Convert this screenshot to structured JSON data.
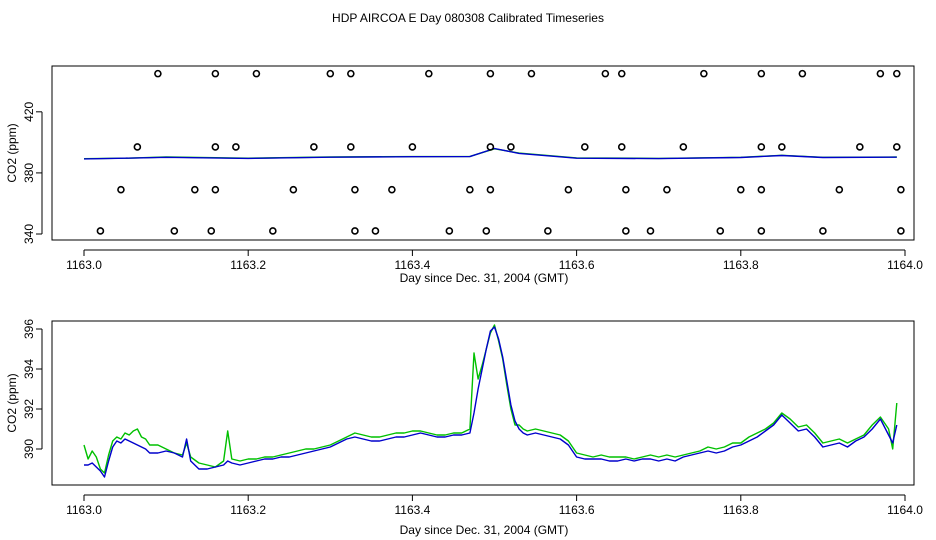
{
  "title": "HDP AIRCOA E  Day 080308  Calibrated Timeseries",
  "colors": {
    "green": "#00c000",
    "blue": "#0000cc",
    "axis": "#000000"
  },
  "chart_data": [
    {
      "type": "line",
      "xlabel": "Day since Dec. 31, 2004 (GMT)",
      "ylabel": "CO2 (ppm)",
      "xlim": [
        1163.0,
        1164.0
      ],
      "ylim": [
        340,
        450
      ],
      "x_ticks": [
        "1163.0",
        "1163.2",
        "1163.4",
        "1163.6",
        "1163.8",
        "1164.0"
      ],
      "y_ticks": [
        "340",
        "380",
        "420"
      ],
      "grid": false,
      "series": [
        {
          "color": "#00c000",
          "x": [
            1163.0,
            1163.05,
            1163.1,
            1163.2,
            1163.3,
            1163.4,
            1163.47,
            1163.5,
            1163.53,
            1163.6,
            1163.7,
            1163.8,
            1163.85,
            1163.9,
            1163.99
          ],
          "y": [
            389.3,
            389.6,
            390.4,
            389.6,
            390.4,
            390.7,
            390.8,
            395.8,
            393.0,
            389.8,
            389.5,
            390.2,
            391.5,
            390.2,
            390.4
          ]
        },
        {
          "color": "#0000cc",
          "x": [
            1163.0,
            1163.05,
            1163.1,
            1163.2,
            1163.3,
            1163.4,
            1163.47,
            1163.5,
            1163.53,
            1163.6,
            1163.7,
            1163.8,
            1163.85,
            1163.9,
            1163.99
          ],
          "y": [
            389.2,
            389.6,
            390.2,
            389.5,
            390.3,
            390.6,
            390.7,
            396.0,
            392.8,
            389.6,
            389.4,
            390.1,
            391.4,
            390.1,
            390.3
          ]
        },
        {
          "type": "scatter",
          "marker": "open-circle",
          "x": [
            1163.02,
            1163.11,
            1163.155,
            1163.23,
            1163.33,
            1163.355,
            1163.445,
            1163.49,
            1163.565,
            1163.66,
            1163.69,
            1163.775,
            1163.825,
            1163.9,
            1163.995
          ],
          "y": [
            342,
            342,
            342,
            342,
            342,
            342,
            342,
            342,
            342,
            342,
            342,
            342,
            342,
            342,
            342
          ]
        },
        {
          "type": "scatter",
          "marker": "open-circle",
          "x": [
            1163.045,
            1163.135,
            1163.16,
            1163.255,
            1163.33,
            1163.375,
            1163.47,
            1163.495,
            1163.59,
            1163.66,
            1163.71,
            1163.8,
            1163.825,
            1163.92,
            1163.995
          ],
          "y": [
            369,
            369,
            369,
            369,
            369,
            369,
            369,
            369,
            369,
            369,
            369,
            369,
            369,
            369,
            369
          ]
        },
        {
          "type": "scatter",
          "marker": "open-circle",
          "x": [
            1163.065,
            1163.16,
            1163.185,
            1163.28,
            1163.325,
            1163.4,
            1163.495,
            1163.52,
            1163.61,
            1163.655,
            1163.73,
            1163.825,
            1163.85,
            1163.945,
            1163.99
          ],
          "y": [
            397,
            397,
            397,
            397,
            397,
            397,
            397,
            397,
            397,
            397,
            397,
            397,
            397,
            397,
            397
          ]
        },
        {
          "type": "scatter",
          "marker": "open-circle",
          "x": [
            1163.09,
            1163.16,
            1163.21,
            1163.3,
            1163.325,
            1163.42,
            1163.495,
            1163.545,
            1163.635,
            1163.655,
            1163.755,
            1163.825,
            1163.875,
            1163.97,
            1163.99
          ],
          "y": [
            445,
            445,
            445,
            445,
            445,
            445,
            445,
            445,
            445,
            445,
            445,
            445,
            445,
            445,
            445
          ]
        }
      ]
    },
    {
      "type": "line",
      "xlabel": "Day since Dec. 31, 2004 (GMT)",
      "ylabel": "CO2 (ppm)",
      "xlim": [
        1163.0,
        1164.0
      ],
      "ylim": [
        388.2,
        396.4
      ],
      "x_ticks": [
        "1163.0",
        "1163.2",
        "1163.4",
        "1163.6",
        "1163.8",
        "1164.0"
      ],
      "y_ticks": [
        "390",
        "392",
        "394",
        "396"
      ],
      "grid": false,
      "series": [
        {
          "color": "#00c000",
          "x": [
            1163.0,
            1163.005,
            1163.01,
            1163.015,
            1163.02,
            1163.025,
            1163.03,
            1163.035,
            1163.04,
            1163.045,
            1163.05,
            1163.055,
            1163.06,
            1163.065,
            1163.07,
            1163.075,
            1163.08,
            1163.09,
            1163.1,
            1163.11,
            1163.12,
            1163.125,
            1163.13,
            1163.14,
            1163.15,
            1163.16,
            1163.17,
            1163.175,
            1163.18,
            1163.19,
            1163.2,
            1163.21,
            1163.22,
            1163.23,
            1163.24,
            1163.25,
            1163.26,
            1163.27,
            1163.28,
            1163.29,
            1163.3,
            1163.31,
            1163.32,
            1163.33,
            1163.34,
            1163.35,
            1163.36,
            1163.37,
            1163.38,
            1163.39,
            1163.4,
            1163.41,
            1163.42,
            1163.43,
            1163.44,
            1163.45,
            1163.46,
            1163.47,
            1163.475,
            1163.48,
            1163.485,
            1163.49,
            1163.495,
            1163.5,
            1163.505,
            1163.51,
            1163.515,
            1163.52,
            1163.525,
            1163.53,
            1163.535,
            1163.54,
            1163.55,
            1163.56,
            1163.57,
            1163.58,
            1163.59,
            1163.6,
            1163.61,
            1163.62,
            1163.63,
            1163.64,
            1163.65,
            1163.66,
            1163.67,
            1163.68,
            1163.69,
            1163.7,
            1163.71,
            1163.72,
            1163.73,
            1163.74,
            1163.75,
            1163.76,
            1163.77,
            1163.78,
            1163.79,
            1163.8,
            1163.81,
            1163.82,
            1163.83,
            1163.84,
            1163.85,
            1163.86,
            1163.87,
            1163.88,
            1163.89,
            1163.9,
            1163.91,
            1163.92,
            1163.93,
            1163.94,
            1163.95,
            1163.96,
            1163.97,
            1163.975,
            1163.98,
            1163.985,
            1163.99
          ],
          "y": [
            390.2,
            389.5,
            389.9,
            389.6,
            389.0,
            388.8,
            389.7,
            390.4,
            390.6,
            390.5,
            390.8,
            390.7,
            390.9,
            391.0,
            390.6,
            390.5,
            390.2,
            390.2,
            390.0,
            389.8,
            389.7,
            390.3,
            389.6,
            389.3,
            389.2,
            389.1,
            389.4,
            390.9,
            389.5,
            389.4,
            389.5,
            389.5,
            389.6,
            389.6,
            389.7,
            389.8,
            389.9,
            390.0,
            390.0,
            390.1,
            390.2,
            390.4,
            390.6,
            390.8,
            390.7,
            390.6,
            390.6,
            390.7,
            390.8,
            390.8,
            390.9,
            390.9,
            390.8,
            390.7,
            390.7,
            390.8,
            390.8,
            391.0,
            394.8,
            393.5,
            394.2,
            395.0,
            395.8,
            396.2,
            395.4,
            394.5,
            393.2,
            392.0,
            391.2,
            391.2,
            391.0,
            390.9,
            391.0,
            390.9,
            390.8,
            390.7,
            390.4,
            389.8,
            389.7,
            389.6,
            389.7,
            389.6,
            389.6,
            389.6,
            389.5,
            389.6,
            389.7,
            389.6,
            389.7,
            389.6,
            389.7,
            389.8,
            389.9,
            390.1,
            390.0,
            390.1,
            390.3,
            390.3,
            390.6,
            390.8,
            391.0,
            391.3,
            391.8,
            391.5,
            391.1,
            391.2,
            390.8,
            390.3,
            390.4,
            390.5,
            390.3,
            390.5,
            390.7,
            391.2,
            391.6,
            391.3,
            391.0,
            390.0,
            392.3
          ]
        },
        {
          "color": "#0000cc",
          "x": [
            1163.0,
            1163.005,
            1163.01,
            1163.015,
            1163.02,
            1163.025,
            1163.03,
            1163.035,
            1163.04,
            1163.045,
            1163.05,
            1163.055,
            1163.06,
            1163.065,
            1163.07,
            1163.075,
            1163.08,
            1163.09,
            1163.1,
            1163.11,
            1163.12,
            1163.125,
            1163.13,
            1163.14,
            1163.15,
            1163.16,
            1163.17,
            1163.175,
            1163.18,
            1163.19,
            1163.2,
            1163.21,
            1163.22,
            1163.23,
            1163.24,
            1163.25,
            1163.26,
            1163.27,
            1163.28,
            1163.29,
            1163.3,
            1163.31,
            1163.32,
            1163.33,
            1163.34,
            1163.35,
            1163.36,
            1163.37,
            1163.38,
            1163.39,
            1163.4,
            1163.41,
            1163.42,
            1163.43,
            1163.44,
            1163.45,
            1163.46,
            1163.47,
            1163.475,
            1163.48,
            1163.485,
            1163.49,
            1163.495,
            1163.5,
            1163.505,
            1163.51,
            1163.515,
            1163.52,
            1163.525,
            1163.53,
            1163.535,
            1163.54,
            1163.55,
            1163.56,
            1163.57,
            1163.58,
            1163.59,
            1163.6,
            1163.61,
            1163.62,
            1163.63,
            1163.64,
            1163.65,
            1163.66,
            1163.67,
            1163.68,
            1163.69,
            1163.7,
            1163.71,
            1163.72,
            1163.73,
            1163.74,
            1163.75,
            1163.76,
            1163.77,
            1163.78,
            1163.79,
            1163.8,
            1163.81,
            1163.82,
            1163.83,
            1163.84,
            1163.85,
            1163.86,
            1163.87,
            1163.88,
            1163.89,
            1163.9,
            1163.91,
            1163.92,
            1163.93,
            1163.94,
            1163.95,
            1163.96,
            1163.97,
            1163.975,
            1163.98,
            1163.985,
            1163.99
          ],
          "y": [
            389.2,
            389.2,
            389.3,
            389.1,
            388.9,
            388.6,
            389.4,
            390.1,
            390.4,
            390.3,
            390.5,
            390.4,
            390.3,
            390.2,
            390.1,
            390.0,
            389.8,
            389.8,
            389.9,
            389.8,
            389.6,
            390.5,
            389.4,
            389.0,
            389.0,
            389.1,
            389.2,
            389.4,
            389.3,
            389.2,
            389.3,
            389.4,
            389.5,
            389.5,
            389.6,
            389.6,
            389.7,
            389.8,
            389.9,
            390.0,
            390.1,
            390.3,
            390.5,
            390.6,
            390.5,
            390.4,
            390.4,
            390.5,
            390.6,
            390.6,
            390.7,
            390.8,
            390.7,
            390.6,
            390.6,
            390.7,
            390.7,
            390.8,
            391.8,
            393.0,
            394.0,
            395.0,
            395.9,
            396.1,
            395.5,
            394.6,
            393.4,
            392.2,
            391.4,
            391.0,
            390.8,
            390.7,
            390.8,
            390.7,
            390.6,
            390.5,
            390.2,
            389.6,
            389.5,
            389.5,
            389.5,
            389.4,
            389.4,
            389.5,
            389.4,
            389.5,
            389.5,
            389.4,
            389.5,
            389.4,
            389.6,
            389.7,
            389.8,
            389.9,
            389.8,
            389.9,
            390.1,
            390.2,
            390.4,
            390.6,
            390.9,
            391.2,
            391.7,
            391.3,
            390.9,
            391.0,
            390.6,
            390.1,
            390.2,
            390.3,
            390.1,
            390.4,
            390.6,
            391.0,
            391.5,
            391.1,
            390.7,
            390.3,
            391.2
          ]
        }
      ]
    }
  ]
}
